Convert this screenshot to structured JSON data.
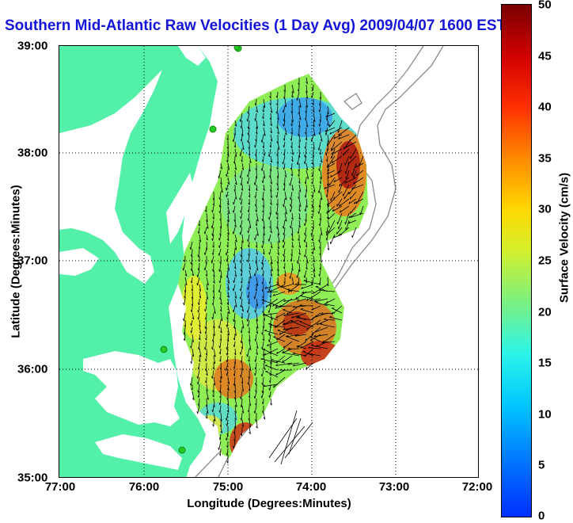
{
  "title": "Southern Mid-Atlantic Raw Velocities (1 Day Avg) 2009/04/07 1600 EST",
  "axes": {
    "xlabel": "Longitude (Degrees:Minutes)",
    "ylabel": "Latitude (Degrees:Minutes)",
    "xticks": [
      "77:00",
      "76:00",
      "75:00",
      "74:00",
      "73:00",
      "72:00"
    ],
    "yticks": [
      "39:00",
      "38:00",
      "37:00",
      "36:00",
      "35:00"
    ],
    "xlim": [
      -77,
      -72
    ],
    "ylim": [
      35,
      39
    ],
    "grid": "dotted"
  },
  "colorbar": {
    "label": "Surface Velocity (cm/s)",
    "ticks": [
      "50",
      "45",
      "40",
      "35",
      "30",
      "25",
      "20",
      "15",
      "10",
      "5",
      "0"
    ],
    "range": [
      0,
      50
    ],
    "colormap": "jet"
  },
  "colors": {
    "title": "#1515d8",
    "land": "#52f0a8",
    "station": "#22cc22",
    "bathymetry": "#8a8a8a"
  },
  "stations": [
    "station-1",
    "station-2",
    "station-3",
    "station-4",
    "station-5"
  ]
}
